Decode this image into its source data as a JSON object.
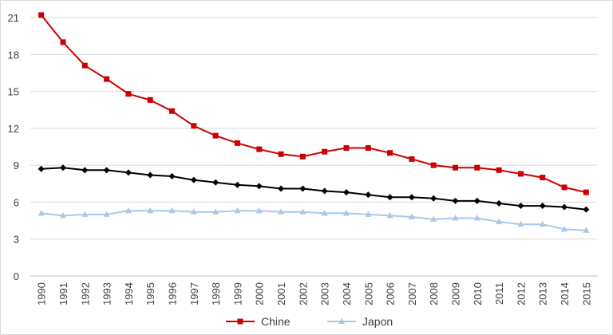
{
  "chart_data": {
    "type": "line",
    "title": "",
    "xlabel": "",
    "ylabel": "",
    "x": [
      "1990",
      "1991",
      "1992",
      "1993",
      "1994",
      "1995",
      "1996",
      "1997",
      "1998",
      "1999",
      "2000",
      "2001",
      "2002",
      "2003",
      "2004",
      "2005",
      "2006",
      "2007",
      "2008",
      "2009",
      "2010",
      "2011",
      "2012",
      "2013",
      "2014",
      "2015"
    ],
    "ylim": [
      0,
      21
    ],
    "yticks": [
      "0",
      "3",
      "6",
      "9",
      "12",
      "15",
      "18",
      "21"
    ],
    "grid": "horizontal",
    "legend_position": "bottom",
    "series": [
      {
        "name": "Chine",
        "color": "#cc0000",
        "marker": "square",
        "values": [
          21.2,
          19.0,
          17.1,
          16.0,
          14.8,
          14.3,
          13.4,
          12.2,
          11.4,
          10.8,
          10.3,
          9.9,
          9.7,
          10.1,
          10.4,
          10.4,
          10.0,
          9.5,
          9.0,
          8.8,
          8.8,
          8.6,
          8.3,
          8.0,
          7.2,
          6.8
        ]
      },
      {
        "name": "",
        "color": "#000000",
        "marker": "diamond",
        "values": [
          8.7,
          8.8,
          8.6,
          8.6,
          8.4,
          8.2,
          8.1,
          7.8,
          7.6,
          7.4,
          7.3,
          7.1,
          7.1,
          6.9,
          6.8,
          6.6,
          6.4,
          6.4,
          6.3,
          6.1,
          6.1,
          5.9,
          5.7,
          5.7,
          5.6,
          5.4
        ]
      },
      {
        "name": "Japon",
        "color": "#a9c8e8",
        "marker": "triangle",
        "values": [
          5.1,
          4.9,
          5.0,
          5.0,
          5.3,
          5.3,
          5.3,
          5.2,
          5.2,
          5.3,
          5.3,
          5.2,
          5.2,
          5.1,
          5.1,
          5.0,
          4.9,
          4.8,
          4.6,
          4.7,
          4.7,
          4.4,
          4.2,
          4.2,
          3.8,
          3.7
        ]
      }
    ]
  }
}
